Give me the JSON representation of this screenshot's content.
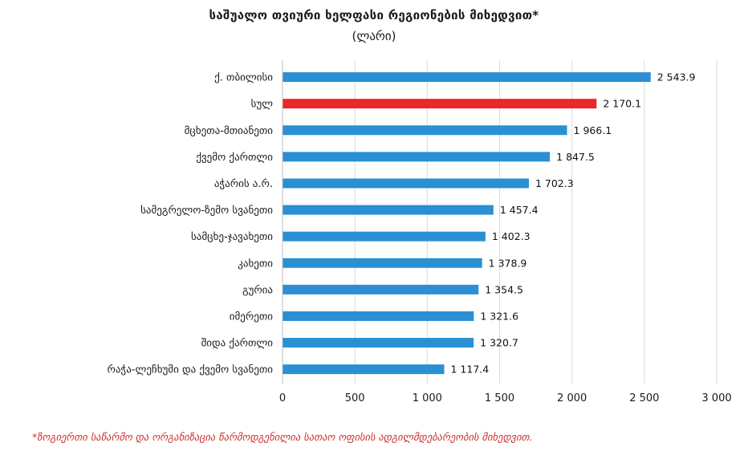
{
  "chart_data": {
    "type": "bar",
    "orientation": "horizontal",
    "title": "საშუალო თვიური ხელფასი რეგიონების მიხედვით*",
    "subtitle": "(ლარი)",
    "categories": [
      "ქ. თბილისი",
      "სულ",
      "მცხეთა-მთიანეთი",
      "ქვემო ქართლი",
      "აჭარის ა.რ.",
      "სამეგრელო-ზემო სვანეთი",
      "სამცხე-ჯავახეთი",
      "კახეთი",
      "გურია",
      "იმერეთი",
      "შიდა ქართლი",
      "რაჭა-ლეჩხუმი და ქვემო სვანეთი"
    ],
    "values": [
      2543.9,
      2170.1,
      1966.1,
      1847.5,
      1702.3,
      1457.4,
      1402.3,
      1378.9,
      1354.5,
      1321.6,
      1320.7,
      1117.4
    ],
    "value_labels": [
      "2 543.9",
      "2 170.1",
      "1 966.1",
      "1 847.5",
      "1 702.3",
      "1 457.4",
      "1 402.3",
      "1 378.9",
      "1 354.5",
      "1 321.6",
      "1 320.7",
      "1 117.4"
    ],
    "bar_colors": [
      "#2a8fd4",
      "#e8282b",
      "#2a8fd4",
      "#2a8fd4",
      "#2a8fd4",
      "#2a8fd4",
      "#2a8fd4",
      "#2a8fd4",
      "#2a8fd4",
      "#2a8fd4",
      "#2a8fd4",
      "#2a8fd4"
    ],
    "xlim": [
      0,
      3000
    ],
    "ticks": [
      0,
      500,
      1000,
      1500,
      2000,
      2500,
      3000
    ],
    "tick_labels": [
      "0",
      "500",
      "1 000",
      "1 500",
      "2 000",
      "2 500",
      "3 000"
    ],
    "xlabel": "",
    "ylabel": "",
    "grid": true,
    "legend": "none",
    "footnote": "*ზოგიერთი საწარმო და ორგანიზაცია წარმოდგენილია სათაო ოფისის ადგილმდებარეობის მიხედვით.",
    "colors": {
      "grid": "#d9d9d9",
      "axis": "#bfbfbf",
      "text": "#1a1a1a",
      "footnote": "#c8302b"
    }
  }
}
